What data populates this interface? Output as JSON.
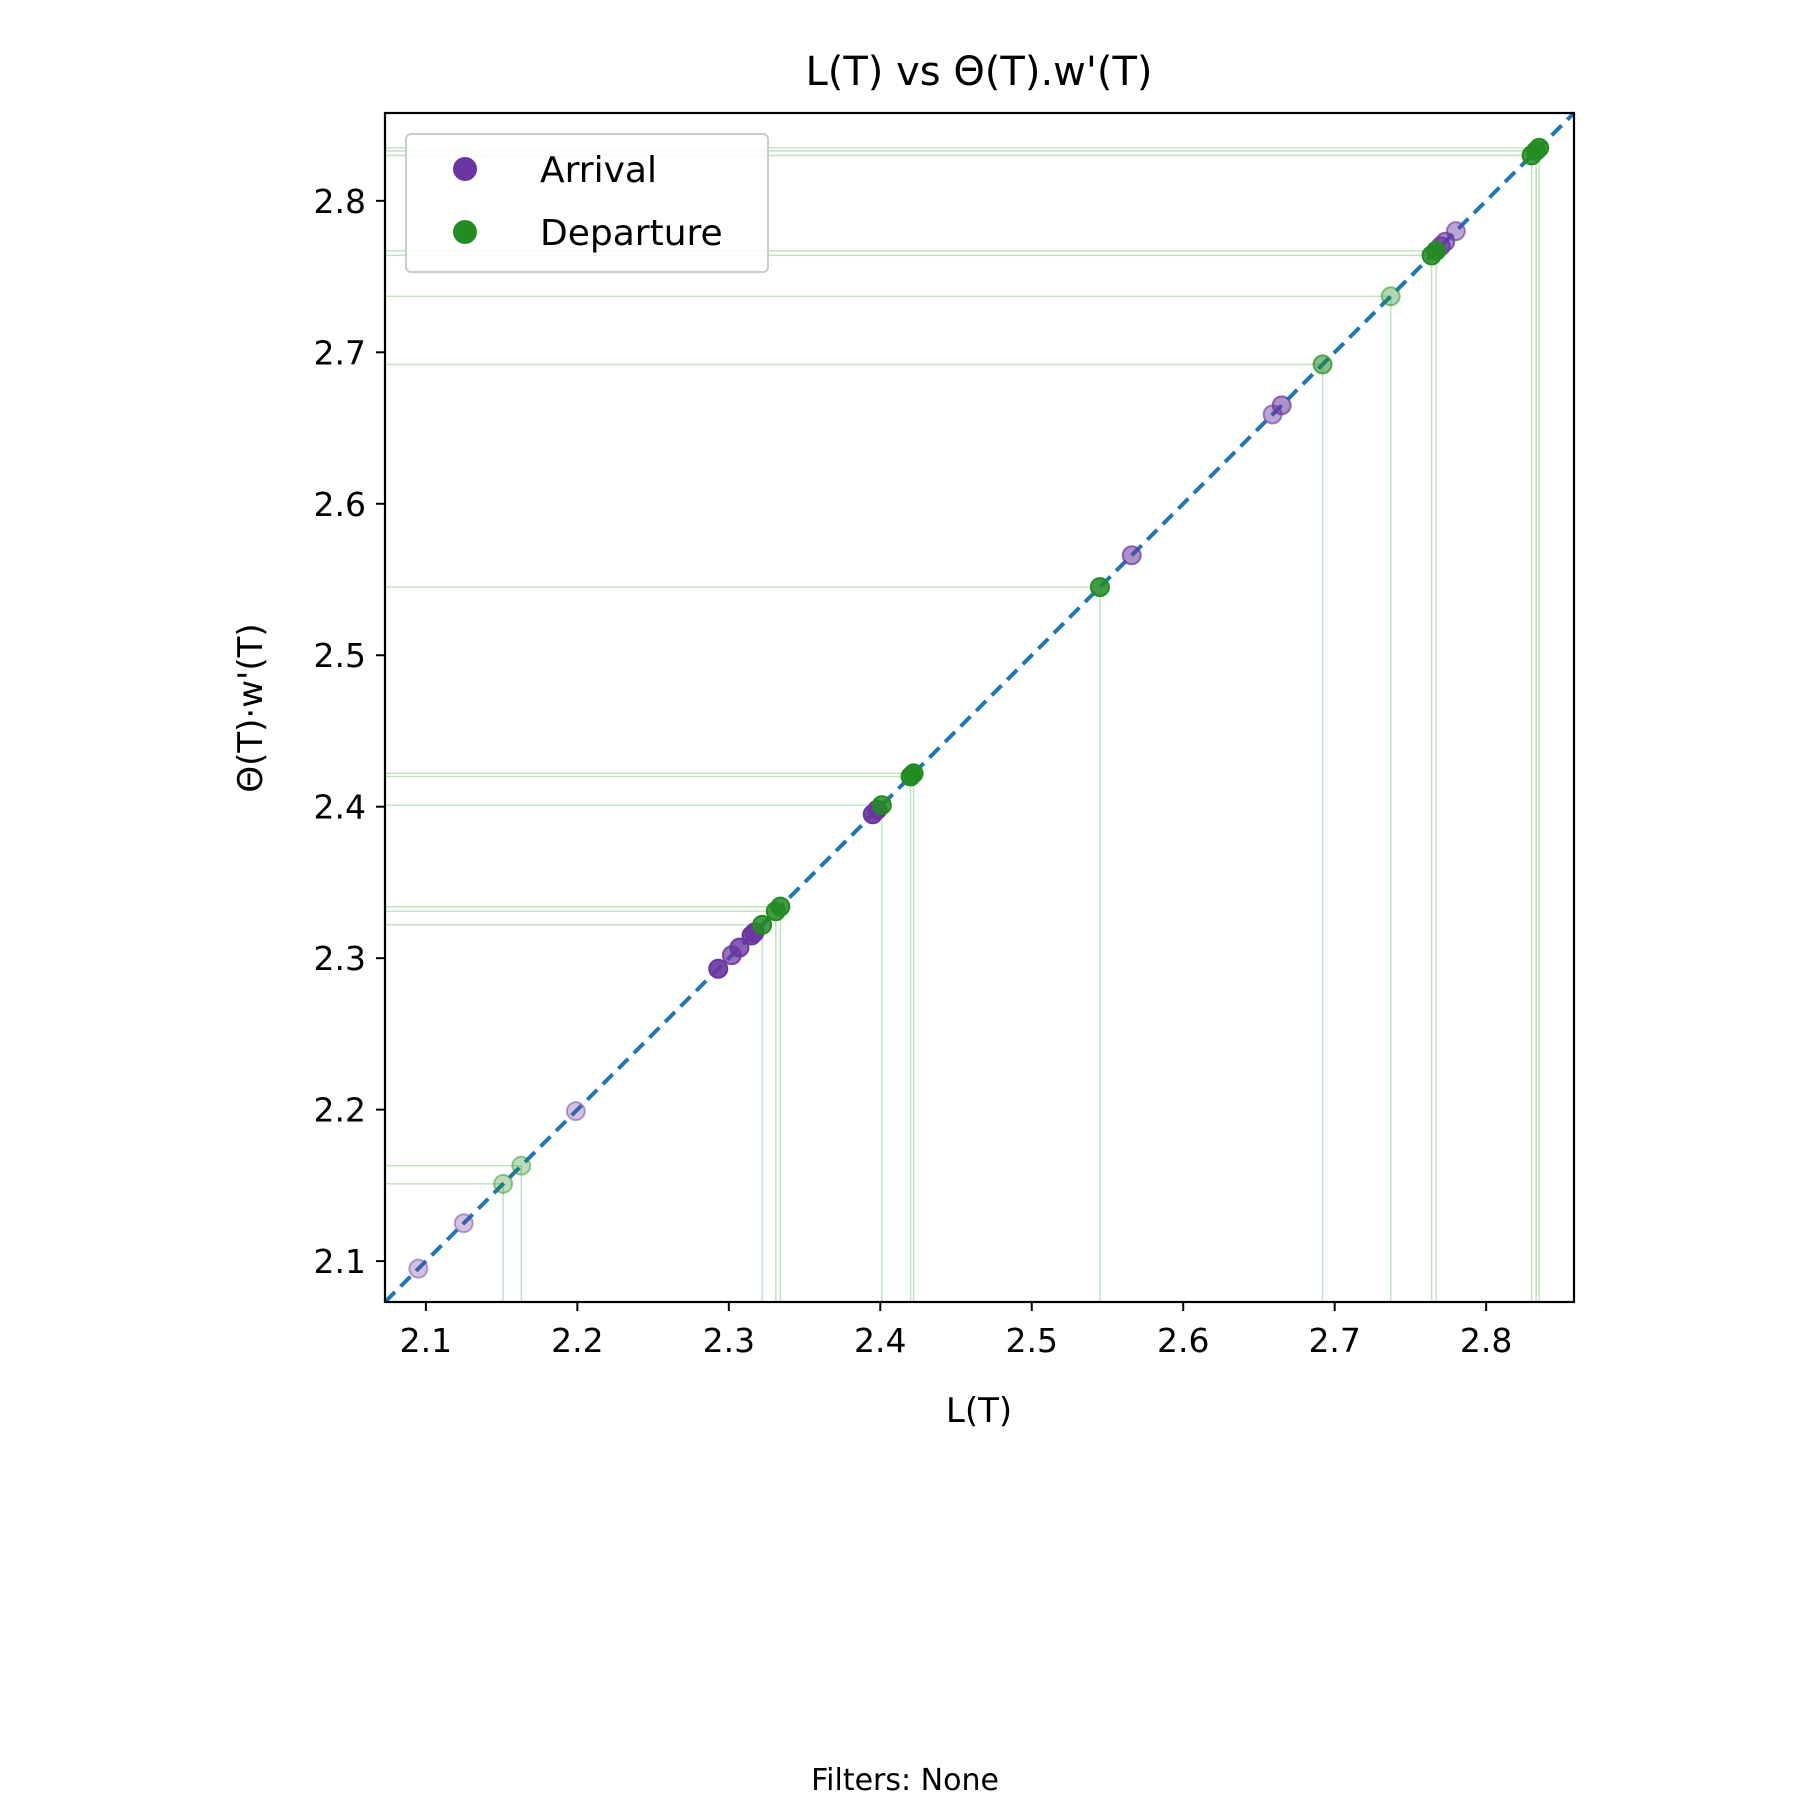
{
  "chart_data": {
    "type": "scatter",
    "title": "L(T) vs Θ(T).w'(T)",
    "xlabel": "L(T)",
    "ylabel": "Θ(T)·w'(T)",
    "xlim": [
      2.073,
      2.858
    ],
    "ylim": [
      2.073,
      2.858
    ],
    "xticks": [
      "2.1",
      "2.2",
      "2.3",
      "2.4",
      "2.5",
      "2.6",
      "2.7",
      "2.8"
    ],
    "yticks": [
      "2.1",
      "2.2",
      "2.3",
      "2.4",
      "2.5",
      "2.6",
      "2.7",
      "2.8"
    ],
    "grid": false,
    "legend_position": "top-left",
    "reference_line": {
      "type": "y=x",
      "style": "dashed",
      "color": "#1f77b4"
    },
    "guide_lines": {
      "color": "#2ca02c",
      "applies_to": "Departure"
    },
    "series": [
      {
        "name": "Arrival",
        "color": "#6a35a0",
        "points": [
          {
            "x": 2.095,
            "y": 2.095,
            "alpha": 0.3
          },
          {
            "x": 2.125,
            "y": 2.125,
            "alpha": 0.3
          },
          {
            "x": 2.199,
            "y": 2.199,
            "alpha": 0.3
          },
          {
            "x": 2.293,
            "y": 2.293,
            "alpha": 0.9
          },
          {
            "x": 2.302,
            "y": 2.302,
            "alpha": 0.7
          },
          {
            "x": 2.307,
            "y": 2.307,
            "alpha": 0.8
          },
          {
            "x": 2.315,
            "y": 2.315,
            "alpha": 0.9
          },
          {
            "x": 2.317,
            "y": 2.317,
            "alpha": 0.8
          },
          {
            "x": 2.395,
            "y": 2.395,
            "alpha": 0.9
          },
          {
            "x": 2.398,
            "y": 2.398,
            "alpha": 0.9
          },
          {
            "x": 2.566,
            "y": 2.566,
            "alpha": 0.55
          },
          {
            "x": 2.659,
            "y": 2.659,
            "alpha": 0.45
          },
          {
            "x": 2.665,
            "y": 2.665,
            "alpha": 0.55
          },
          {
            "x": 2.77,
            "y": 2.77,
            "alpha": 0.65
          },
          {
            "x": 2.773,
            "y": 2.773,
            "alpha": 0.6
          },
          {
            "x": 2.78,
            "y": 2.78,
            "alpha": 0.45
          }
        ]
      },
      {
        "name": "Departure",
        "color": "#228b22",
        "points": [
          {
            "x": 2.151,
            "y": 2.151,
            "alpha": 0.3
          },
          {
            "x": 2.163,
            "y": 2.163,
            "alpha": 0.3
          },
          {
            "x": 2.322,
            "y": 2.322,
            "alpha": 0.85
          },
          {
            "x": 2.331,
            "y": 2.331,
            "alpha": 0.85
          },
          {
            "x": 2.334,
            "y": 2.334,
            "alpha": 0.85
          },
          {
            "x": 2.401,
            "y": 2.401,
            "alpha": 0.85
          },
          {
            "x": 2.42,
            "y": 2.42,
            "alpha": 0.95
          },
          {
            "x": 2.422,
            "y": 2.422,
            "alpha": 0.95
          },
          {
            "x": 2.545,
            "y": 2.545,
            "alpha": 0.85
          },
          {
            "x": 2.692,
            "y": 2.692,
            "alpha": 0.55
          },
          {
            "x": 2.737,
            "y": 2.737,
            "alpha": 0.35
          },
          {
            "x": 2.764,
            "y": 2.764,
            "alpha": 0.85
          },
          {
            "x": 2.767,
            "y": 2.767,
            "alpha": 0.85
          },
          {
            "x": 2.83,
            "y": 2.83,
            "alpha": 0.85
          },
          {
            "x": 2.833,
            "y": 2.833,
            "alpha": 0.85
          },
          {
            "x": 2.835,
            "y": 2.835,
            "alpha": 0.85
          }
        ]
      }
    ]
  },
  "footer": {
    "text": "Filters: None"
  }
}
